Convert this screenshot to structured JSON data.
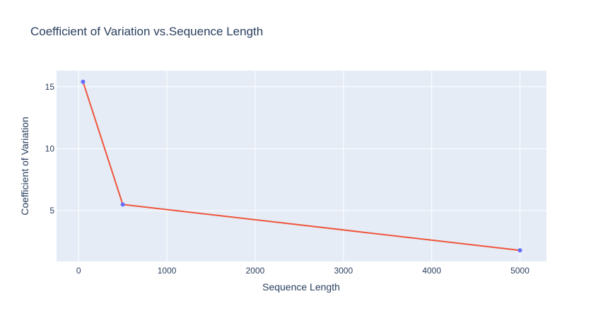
{
  "chart_data": {
    "type": "line",
    "title": "Coefficient of Variation vs.Sequence Length",
    "xlabel": "Sequence Length",
    "ylabel": "Coefficient of Variation",
    "x": [
      50,
      500,
      5000
    ],
    "series": [
      {
        "values": [
          15.4,
          5.5,
          1.8
        ]
      }
    ],
    "xlim": [
      -250,
      5300
    ],
    "ylim": [
      0.9,
      16.3
    ],
    "xticks": [
      0,
      1000,
      2000,
      3000,
      4000,
      5000
    ],
    "xtick_labels": [
      "0",
      "1000",
      "2000",
      "3000",
      "4000",
      "5000"
    ],
    "yticks": [
      5,
      10,
      15
    ],
    "ytick_labels": [
      "5",
      "10",
      "15"
    ],
    "grid": true,
    "colors": {
      "plot_bg": "#e5ecf6",
      "grid": "#ffffff",
      "line": "#ef553b",
      "marker": "#636efa",
      "text": "#2a3f5f"
    }
  }
}
